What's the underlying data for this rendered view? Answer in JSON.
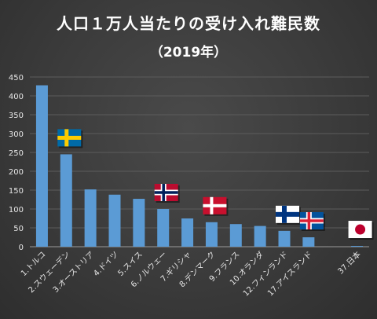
{
  "chart_data": {
    "type": "bar",
    "title": "人口１万人当たりの受け入れ難民数",
    "subtitle": "（2019年）",
    "categories": [
      "1.トルコ",
      "2.スウェーデン",
      "3.オーストリア",
      "4.ドイツ",
      "5.スイス",
      "6.ノルウェー",
      "7.ギリシャ",
      "8.デンマーク",
      "9.フランス",
      "10.オランダ",
      "12.フィンランド",
      "17.アイスランド",
      "",
      "37.日本"
    ],
    "values": [
      428,
      245,
      152,
      138,
      127,
      100,
      75,
      65,
      60,
      55,
      42,
      25,
      null,
      2
    ],
    "ylim": [
      0,
      450
    ],
    "yticks": [
      0,
      50,
      100,
      150,
      200,
      250,
      300,
      350,
      400,
      450
    ],
    "grid": true,
    "bar_color": "#5b9bd5",
    "flags": [
      {
        "category": "2.スウェーデン",
        "icon": "sweden-flag-icon",
        "colors": [
          "#006aa7",
          "#fecc00"
        ]
      },
      {
        "category": "6.ノルウェー",
        "icon": "norway-flag-icon",
        "colors": [
          "#ba0c2f",
          "#ffffff",
          "#00205b"
        ]
      },
      {
        "category": "8.デンマーク",
        "icon": "denmark-flag-icon",
        "colors": [
          "#c8102e",
          "#ffffff"
        ]
      },
      {
        "category": "12.フィンランド",
        "icon": "finland-flag-icon",
        "colors": [
          "#ffffff",
          "#003580"
        ]
      },
      {
        "category": "17.アイスランド",
        "icon": "iceland-flag-icon",
        "colors": [
          "#02529c",
          "#ffffff",
          "#dc1e35"
        ]
      },
      {
        "category": "37.日本",
        "icon": "japan-flag-icon",
        "colors": [
          "#ffffff",
          "#bc002d"
        ]
      }
    ]
  }
}
